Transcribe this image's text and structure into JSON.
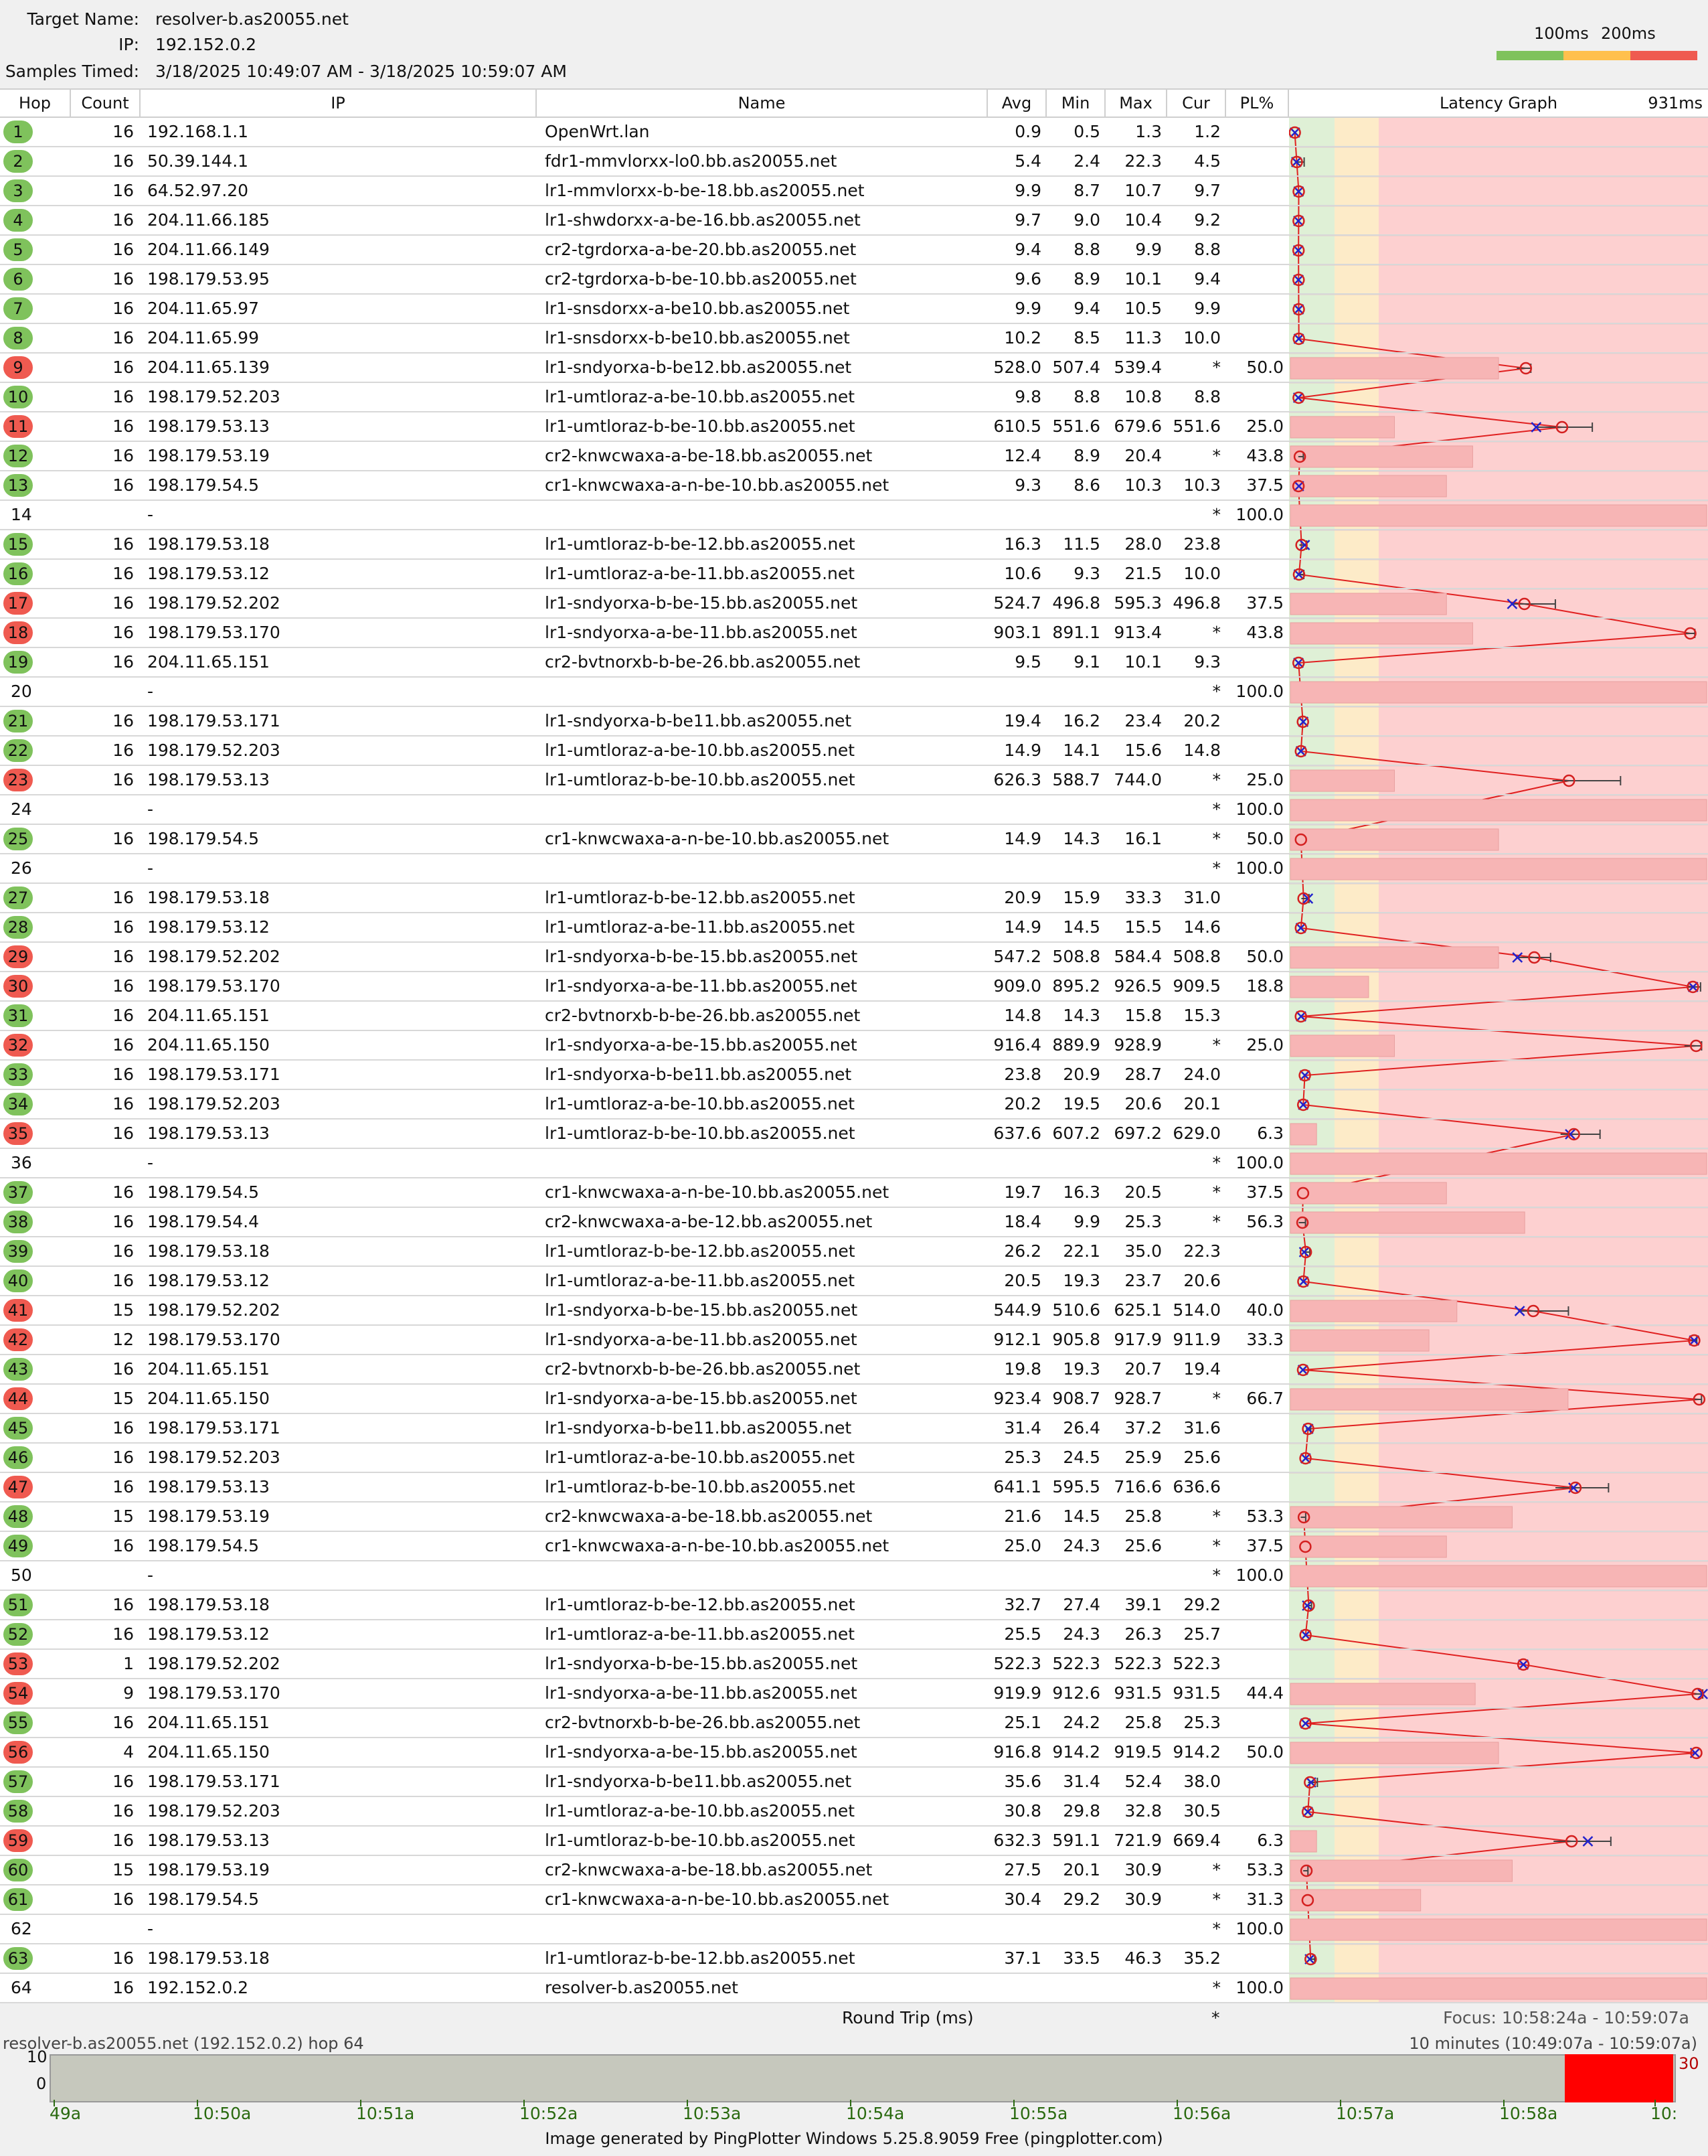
{
  "header": {
    "target_label": "Target Name:",
    "target_value": "resolver-b.as20055.net",
    "ip_label": "IP:",
    "ip_value": "192.152.0.2",
    "samples_label": "Samples Timed:",
    "samples_value": "3/18/2025 10:49:07 AM - 3/18/2025 10:59:07 AM",
    "legend_100": "100ms",
    "legend_200": "200ms"
  },
  "colors": {
    "good": "#7fc25c",
    "warn": "#ffc04d",
    "bad": "#ef5a50"
  },
  "columns": {
    "hop": "Hop",
    "count": "Count",
    "ip": "IP",
    "name": "Name",
    "avg": "Avg",
    "min": "Min",
    "max": "Max",
    "cur": "Cur",
    "pl": "PL%",
    "graph": "Latency Graph",
    "graph_max": "931ms"
  },
  "rows": [
    {
      "hop": "1",
      "count": "16",
      "ip": "192.168.1.1",
      "name": "OpenWrt.lan",
      "avg": "0.9",
      "min": "0.5",
      "max": "1.3",
      "cur": "1.2",
      "pl": "",
      "status": "g"
    },
    {
      "hop": "2",
      "count": "16",
      "ip": "50.39.144.1",
      "name": "fdr1-mmvlorxx-lo0.bb.as20055.net",
      "avg": "5.4",
      "min": "2.4",
      "max": "22.3",
      "cur": "4.5",
      "pl": "",
      "status": "g"
    },
    {
      "hop": "3",
      "count": "16",
      "ip": "64.52.97.20",
      "name": "lr1-mmvlorxx-b-be-18.bb.as20055.net",
      "avg": "9.9",
      "min": "8.7",
      "max": "10.7",
      "cur": "9.7",
      "pl": "",
      "status": "g"
    },
    {
      "hop": "4",
      "count": "16",
      "ip": "204.11.66.185",
      "name": "lr1-shwdorxx-a-be-16.bb.as20055.net",
      "avg": "9.7",
      "min": "9.0",
      "max": "10.4",
      "cur": "9.2",
      "pl": "",
      "status": "g"
    },
    {
      "hop": "5",
      "count": "16",
      "ip": "204.11.66.149",
      "name": "cr2-tgrdorxa-a-be-20.bb.as20055.net",
      "avg": "9.4",
      "min": "8.8",
      "max": "9.9",
      "cur": "8.8",
      "pl": "",
      "status": "g"
    },
    {
      "hop": "6",
      "count": "16",
      "ip": "198.179.53.95",
      "name": "cr2-tgrdorxa-b-be-10.bb.as20055.net",
      "avg": "9.6",
      "min": "8.9",
      "max": "10.1",
      "cur": "9.4",
      "pl": "",
      "status": "g"
    },
    {
      "hop": "7",
      "count": "16",
      "ip": "204.11.65.97",
      "name": "lr1-snsdorxx-a-be10.bb.as20055.net",
      "avg": "9.9",
      "min": "9.4",
      "max": "10.5",
      "cur": "9.9",
      "pl": "",
      "status": "g"
    },
    {
      "hop": "8",
      "count": "16",
      "ip": "204.11.65.99",
      "name": "lr1-snsdorxx-b-be10.bb.as20055.net",
      "avg": "10.2",
      "min": "8.5",
      "max": "11.3",
      "cur": "10.0",
      "pl": "",
      "status": "g"
    },
    {
      "hop": "9",
      "count": "16",
      "ip": "204.11.65.139",
      "name": "lr1-sndyorxa-b-be12.bb.as20055.net",
      "avg": "528.0",
      "min": "507.4",
      "max": "539.4",
      "cur": "*",
      "pl": "50.0",
      "status": "r"
    },
    {
      "hop": "10",
      "count": "16",
      "ip": "198.179.52.203",
      "name": "lr1-umtloraz-a-be-10.bb.as20055.net",
      "avg": "9.8",
      "min": "8.8",
      "max": "10.8",
      "cur": "8.8",
      "pl": "",
      "status": "g"
    },
    {
      "hop": "11",
      "count": "16",
      "ip": "198.179.53.13",
      "name": "lr1-umtloraz-b-be-10.bb.as20055.net",
      "avg": "610.5",
      "min": "551.6",
      "max": "679.6",
      "cur": "551.6",
      "pl": "25.0",
      "status": "r"
    },
    {
      "hop": "12",
      "count": "16",
      "ip": "198.179.53.19",
      "name": "cr2-knwcwaxa-a-be-18.bb.as20055.net",
      "avg": "12.4",
      "min": "8.9",
      "max": "20.4",
      "cur": "*",
      "pl": "43.8",
      "status": "g"
    },
    {
      "hop": "13",
      "count": "16",
      "ip": "198.179.54.5",
      "name": "cr1-knwcwaxa-a-n-be-10.bb.as20055.net",
      "avg": "9.3",
      "min": "8.6",
      "max": "10.3",
      "cur": "10.3",
      "pl": "37.5",
      "status": "g"
    },
    {
      "hop": "14",
      "count": "",
      "ip": "-",
      "name": "",
      "avg": "",
      "min": "",
      "max": "",
      "cur": "*",
      "pl": "100.0",
      "status": ""
    },
    {
      "hop": "15",
      "count": "16",
      "ip": "198.179.53.18",
      "name": "lr1-umtloraz-b-be-12.bb.as20055.net",
      "avg": "16.3",
      "min": "11.5",
      "max": "28.0",
      "cur": "23.8",
      "pl": "",
      "status": "g"
    },
    {
      "hop": "16",
      "count": "16",
      "ip": "198.179.53.12",
      "name": "lr1-umtloraz-a-be-11.bb.as20055.net",
      "avg": "10.6",
      "min": "9.3",
      "max": "21.5",
      "cur": "10.0",
      "pl": "",
      "status": "g"
    },
    {
      "hop": "17",
      "count": "16",
      "ip": "198.179.52.202",
      "name": "lr1-sndyorxa-b-be-15.bb.as20055.net",
      "avg": "524.7",
      "min": "496.8",
      "max": "595.3",
      "cur": "496.8",
      "pl": "37.5",
      "status": "r"
    },
    {
      "hop": "18",
      "count": "16",
      "ip": "198.179.53.170",
      "name": "lr1-sndyorxa-a-be-11.bb.as20055.net",
      "avg": "903.1",
      "min": "891.1",
      "max": "913.4",
      "cur": "*",
      "pl": "43.8",
      "status": "r"
    },
    {
      "hop": "19",
      "count": "16",
      "ip": "204.11.65.151",
      "name": "cr2-bvtnorxb-b-be-26.bb.as20055.net",
      "avg": "9.5",
      "min": "9.1",
      "max": "10.1",
      "cur": "9.3",
      "pl": "",
      "status": "g"
    },
    {
      "hop": "20",
      "count": "",
      "ip": "-",
      "name": "",
      "avg": "",
      "min": "",
      "max": "",
      "cur": "*",
      "pl": "100.0",
      "status": ""
    },
    {
      "hop": "21",
      "count": "16",
      "ip": "198.179.53.171",
      "name": "lr1-sndyorxa-b-be11.bb.as20055.net",
      "avg": "19.4",
      "min": "16.2",
      "max": "23.4",
      "cur": "20.2",
      "pl": "",
      "status": "g"
    },
    {
      "hop": "22",
      "count": "16",
      "ip": "198.179.52.203",
      "name": "lr1-umtloraz-a-be-10.bb.as20055.net",
      "avg": "14.9",
      "min": "14.1",
      "max": "15.6",
      "cur": "14.8",
      "pl": "",
      "status": "g"
    },
    {
      "hop": "23",
      "count": "16",
      "ip": "198.179.53.13",
      "name": "lr1-umtloraz-b-be-10.bb.as20055.net",
      "avg": "626.3",
      "min": "588.7",
      "max": "744.0",
      "cur": "*",
      "pl": "25.0",
      "status": "r"
    },
    {
      "hop": "24",
      "count": "",
      "ip": "-",
      "name": "",
      "avg": "",
      "min": "",
      "max": "",
      "cur": "*",
      "pl": "100.0",
      "status": ""
    },
    {
      "hop": "25",
      "count": "16",
      "ip": "198.179.54.5",
      "name": "cr1-knwcwaxa-a-n-be-10.bb.as20055.net",
      "avg": "14.9",
      "min": "14.3",
      "max": "16.1",
      "cur": "*",
      "pl": "50.0",
      "status": "g"
    },
    {
      "hop": "26",
      "count": "",
      "ip": "-",
      "name": "",
      "avg": "",
      "min": "",
      "max": "",
      "cur": "*",
      "pl": "100.0",
      "status": ""
    },
    {
      "hop": "27",
      "count": "16",
      "ip": "198.179.53.18",
      "name": "lr1-umtloraz-b-be-12.bb.as20055.net",
      "avg": "20.9",
      "min": "15.9",
      "max": "33.3",
      "cur": "31.0",
      "pl": "",
      "status": "g"
    },
    {
      "hop": "28",
      "count": "16",
      "ip": "198.179.53.12",
      "name": "lr1-umtloraz-a-be-11.bb.as20055.net",
      "avg": "14.9",
      "min": "14.5",
      "max": "15.5",
      "cur": "14.6",
      "pl": "",
      "status": "g"
    },
    {
      "hop": "29",
      "count": "16",
      "ip": "198.179.52.202",
      "name": "lr1-sndyorxa-b-be-15.bb.as20055.net",
      "avg": "547.2",
      "min": "508.8",
      "max": "584.4",
      "cur": "508.8",
      "pl": "50.0",
      "status": "r"
    },
    {
      "hop": "30",
      "count": "16",
      "ip": "198.179.53.170",
      "name": "lr1-sndyorxa-a-be-11.bb.as20055.net",
      "avg": "909.0",
      "min": "895.2",
      "max": "926.5",
      "cur": "909.5",
      "pl": "18.8",
      "status": "r"
    },
    {
      "hop": "31",
      "count": "16",
      "ip": "204.11.65.151",
      "name": "cr2-bvtnorxb-b-be-26.bb.as20055.net",
      "avg": "14.8",
      "min": "14.3",
      "max": "15.8",
      "cur": "15.3",
      "pl": "",
      "status": "g"
    },
    {
      "hop": "32",
      "count": "16",
      "ip": "204.11.65.150",
      "name": "lr1-sndyorxa-a-be-15.bb.as20055.net",
      "avg": "916.4",
      "min": "889.9",
      "max": "928.9",
      "cur": "*",
      "pl": "25.0",
      "status": "r"
    },
    {
      "hop": "33",
      "count": "16",
      "ip": "198.179.53.171",
      "name": "lr1-sndyorxa-b-be11.bb.as20055.net",
      "avg": "23.8",
      "min": "20.9",
      "max": "28.7",
      "cur": "24.0",
      "pl": "",
      "status": "g"
    },
    {
      "hop": "34",
      "count": "16",
      "ip": "198.179.52.203",
      "name": "lr1-umtloraz-a-be-10.bb.as20055.net",
      "avg": "20.2",
      "min": "19.5",
      "max": "20.6",
      "cur": "20.1",
      "pl": "",
      "status": "g"
    },
    {
      "hop": "35",
      "count": "16",
      "ip": "198.179.53.13",
      "name": "lr1-umtloraz-b-be-10.bb.as20055.net",
      "avg": "637.6",
      "min": "607.2",
      "max": "697.2",
      "cur": "629.0",
      "pl": "6.3",
      "status": "r"
    },
    {
      "hop": "36",
      "count": "",
      "ip": "-",
      "name": "",
      "avg": "",
      "min": "",
      "max": "",
      "cur": "*",
      "pl": "100.0",
      "status": ""
    },
    {
      "hop": "37",
      "count": "16",
      "ip": "198.179.54.5",
      "name": "cr1-knwcwaxa-a-n-be-10.bb.as20055.net",
      "avg": "19.7",
      "min": "16.3",
      "max": "20.5",
      "cur": "*",
      "pl": "37.5",
      "status": "g"
    },
    {
      "hop": "38",
      "count": "16",
      "ip": "198.179.54.4",
      "name": "cr2-knwcwaxa-a-be-12.bb.as20055.net",
      "avg": "18.4",
      "min": "9.9",
      "max": "25.3",
      "cur": "*",
      "pl": "56.3",
      "status": "g"
    },
    {
      "hop": "39",
      "count": "16",
      "ip": "198.179.53.18",
      "name": "lr1-umtloraz-b-be-12.bb.as20055.net",
      "avg": "26.2",
      "min": "22.1",
      "max": "35.0",
      "cur": "22.3",
      "pl": "",
      "status": "g"
    },
    {
      "hop": "40",
      "count": "16",
      "ip": "198.179.53.12",
      "name": "lr1-umtloraz-a-be-11.bb.as20055.net",
      "avg": "20.5",
      "min": "19.3",
      "max": "23.7",
      "cur": "20.6",
      "pl": "",
      "status": "g"
    },
    {
      "hop": "41",
      "count": "15",
      "ip": "198.179.52.202",
      "name": "lr1-sndyorxa-b-be-15.bb.as20055.net",
      "avg": "544.9",
      "min": "510.6",
      "max": "625.1",
      "cur": "514.0",
      "pl": "40.0",
      "status": "r"
    },
    {
      "hop": "42",
      "count": "12",
      "ip": "198.179.53.170",
      "name": "lr1-sndyorxa-a-be-11.bb.as20055.net",
      "avg": "912.1",
      "min": "905.8",
      "max": "917.9",
      "cur": "911.9",
      "pl": "33.3",
      "status": "r"
    },
    {
      "hop": "43",
      "count": "16",
      "ip": "204.11.65.151",
      "name": "cr2-bvtnorxb-b-be-26.bb.as20055.net",
      "avg": "19.8",
      "min": "19.3",
      "max": "20.7",
      "cur": "19.4",
      "pl": "",
      "status": "g"
    },
    {
      "hop": "44",
      "count": "15",
      "ip": "204.11.65.150",
      "name": "lr1-sndyorxa-a-be-15.bb.as20055.net",
      "avg": "923.4",
      "min": "908.7",
      "max": "928.7",
      "cur": "*",
      "pl": "66.7",
      "status": "r"
    },
    {
      "hop": "45",
      "count": "16",
      "ip": "198.179.53.171",
      "name": "lr1-sndyorxa-b-be11.bb.as20055.net",
      "avg": "31.4",
      "min": "26.4",
      "max": "37.2",
      "cur": "31.6",
      "pl": "",
      "status": "g"
    },
    {
      "hop": "46",
      "count": "16",
      "ip": "198.179.52.203",
      "name": "lr1-umtloraz-a-be-10.bb.as20055.net",
      "avg": "25.3",
      "min": "24.5",
      "max": "25.9",
      "cur": "25.6",
      "pl": "",
      "status": "g"
    },
    {
      "hop": "47",
      "count": "16",
      "ip": "198.179.53.13",
      "name": "lr1-umtloraz-b-be-10.bb.as20055.net",
      "avg": "641.1",
      "min": "595.5",
      "max": "716.6",
      "cur": "636.6",
      "pl": "",
      "status": "r"
    },
    {
      "hop": "48",
      "count": "15",
      "ip": "198.179.53.19",
      "name": "cr2-knwcwaxa-a-be-18.bb.as20055.net",
      "avg": "21.6",
      "min": "14.5",
      "max": "25.8",
      "cur": "*",
      "pl": "53.3",
      "status": "g"
    },
    {
      "hop": "49",
      "count": "16",
      "ip": "198.179.54.5",
      "name": "cr1-knwcwaxa-a-n-be-10.bb.as20055.net",
      "avg": "25.0",
      "min": "24.3",
      "max": "25.6",
      "cur": "*",
      "pl": "37.5",
      "status": "g"
    },
    {
      "hop": "50",
      "count": "",
      "ip": "-",
      "name": "",
      "avg": "",
      "min": "",
      "max": "",
      "cur": "*",
      "pl": "100.0",
      "status": ""
    },
    {
      "hop": "51",
      "count": "16",
      "ip": "198.179.53.18",
      "name": "lr1-umtloraz-b-be-12.bb.as20055.net",
      "avg": "32.7",
      "min": "27.4",
      "max": "39.1",
      "cur": "29.2",
      "pl": "",
      "status": "g"
    },
    {
      "hop": "52",
      "count": "16",
      "ip": "198.179.53.12",
      "name": "lr1-umtloraz-a-be-11.bb.as20055.net",
      "avg": "25.5",
      "min": "24.3",
      "max": "26.3",
      "cur": "25.7",
      "pl": "",
      "status": "g"
    },
    {
      "hop": "53",
      "count": "1",
      "ip": "198.179.52.202",
      "name": "lr1-sndyorxa-b-be-15.bb.as20055.net",
      "avg": "522.3",
      "min": "522.3",
      "max": "522.3",
      "cur": "522.3",
      "pl": "",
      "status": "r"
    },
    {
      "hop": "54",
      "count": "9",
      "ip": "198.179.53.170",
      "name": "lr1-sndyorxa-a-be-11.bb.as20055.net",
      "avg": "919.9",
      "min": "912.6",
      "max": "931.5",
      "cur": "931.5",
      "pl": "44.4",
      "status": "r"
    },
    {
      "hop": "55",
      "count": "16",
      "ip": "204.11.65.151",
      "name": "cr2-bvtnorxb-b-be-26.bb.as20055.net",
      "avg": "25.1",
      "min": "24.2",
      "max": "25.8",
      "cur": "25.3",
      "pl": "",
      "status": "g"
    },
    {
      "hop": "56",
      "count": "4",
      "ip": "204.11.65.150",
      "name": "lr1-sndyorxa-a-be-15.bb.as20055.net",
      "avg": "916.8",
      "min": "914.2",
      "max": "919.5",
      "cur": "914.2",
      "pl": "50.0",
      "status": "r"
    },
    {
      "hop": "57",
      "count": "16",
      "ip": "198.179.53.171",
      "name": "lr1-sndyorxa-b-be11.bb.as20055.net",
      "avg": "35.6",
      "min": "31.4",
      "max": "52.4",
      "cur": "38.0",
      "pl": "",
      "status": "g"
    },
    {
      "hop": "58",
      "count": "16",
      "ip": "198.179.52.203",
      "name": "lr1-umtloraz-a-be-10.bb.as20055.net",
      "avg": "30.8",
      "min": "29.8",
      "max": "32.8",
      "cur": "30.5",
      "pl": "",
      "status": "g"
    },
    {
      "hop": "59",
      "count": "16",
      "ip": "198.179.53.13",
      "name": "lr1-umtloraz-b-be-10.bb.as20055.net",
      "avg": "632.3",
      "min": "591.1",
      "max": "721.9",
      "cur": "669.4",
      "pl": "6.3",
      "status": "r"
    },
    {
      "hop": "60",
      "count": "15",
      "ip": "198.179.53.19",
      "name": "cr2-knwcwaxa-a-be-18.bb.as20055.net",
      "avg": "27.5",
      "min": "20.1",
      "max": "30.9",
      "cur": "*",
      "pl": "53.3",
      "status": "g"
    },
    {
      "hop": "61",
      "count": "16",
      "ip": "198.179.54.5",
      "name": "cr1-knwcwaxa-a-n-be-10.bb.as20055.net",
      "avg": "30.4",
      "min": "29.2",
      "max": "30.9",
      "cur": "*",
      "pl": "31.3",
      "status": "g"
    },
    {
      "hop": "62",
      "count": "",
      "ip": "-",
      "name": "",
      "avg": "",
      "min": "",
      "max": "",
      "cur": "*",
      "pl": "100.0",
      "status": ""
    },
    {
      "hop": "63",
      "count": "16",
      "ip": "198.179.53.18",
      "name": "lr1-umtloraz-b-be-12.bb.as20055.net",
      "avg": "37.1",
      "min": "33.5",
      "max": "46.3",
      "cur": "35.2",
      "pl": "",
      "status": "g"
    },
    {
      "hop": "64",
      "count": "16",
      "ip": "192.152.0.2",
      "name": "resolver-b.as20055.net",
      "avg": "",
      "min": "",
      "max": "",
      "cur": "*",
      "pl": "100.0",
      "status": ""
    }
  ],
  "footer": {
    "round_trip": "Round Trip (ms)",
    "round_trip_cur": "*",
    "focus": "Focus: 10:58:24a - 10:59:07a"
  },
  "timeline": {
    "title": "resolver-b.as20055.net (192.152.0.2) hop 64",
    "range": "10 minutes (10:49:07a - 10:59:07a)",
    "y_top": "10",
    "y_bottom": "0",
    "right_value": "30",
    "ticks": [
      "49a",
      "10:50a",
      "10:51a",
      "10:52a",
      "10:53a",
      "10:54a",
      "10:55a",
      "10:56a",
      "10:57a",
      "10:58a",
      "10:"
    ],
    "credit": "Image generated by PingPlotter Windows 5.25.8.9059 Free (pingplotter.com)"
  }
}
